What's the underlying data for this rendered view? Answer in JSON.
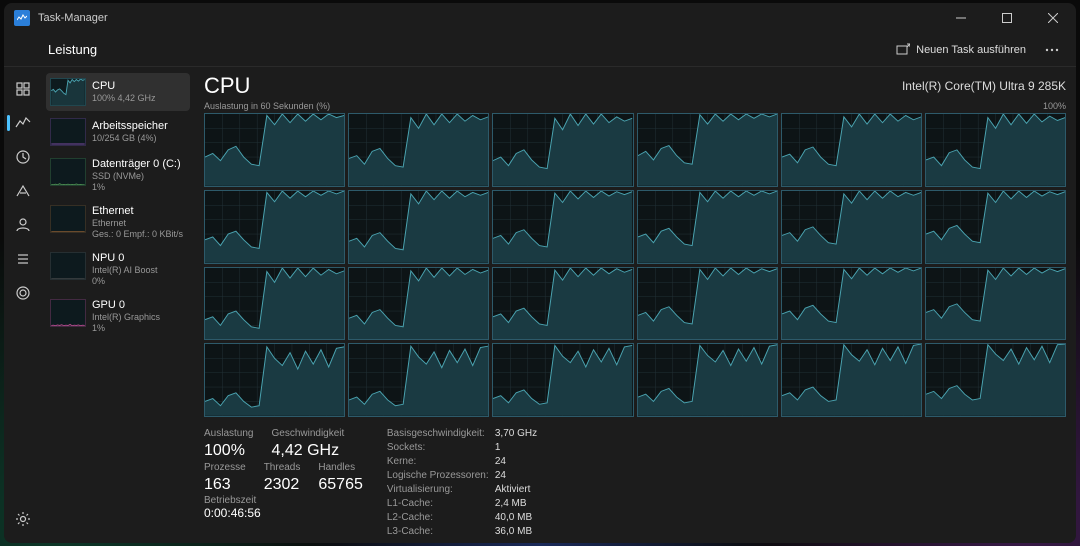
{
  "window": {
    "title": "Task-Manager"
  },
  "toolbar": {
    "page": "Leistung",
    "new_task": "Neuen Task ausführen"
  },
  "nav": {
    "items": [
      {
        "name": "processes-tab"
      },
      {
        "name": "performance-tab",
        "active": true
      },
      {
        "name": "history-tab"
      },
      {
        "name": "startup-tab"
      },
      {
        "name": "users-tab"
      },
      {
        "name": "details-tab"
      },
      {
        "name": "services-tab"
      }
    ]
  },
  "side": [
    {
      "name": "CPU",
      "sub": "100% 4,42 GHz",
      "selected": true,
      "color": "#4aa3b0",
      "spark": [
        55,
        60,
        50,
        58,
        62,
        54,
        45,
        40,
        95,
        85,
        98,
        90,
        98,
        92,
        100,
        95,
        98
      ]
    },
    {
      "name": "Arbeitsspeicher",
      "sub": "10/254 GB (4%)",
      "color": "#7a4aa0",
      "spark": [
        4,
        4,
        4,
        4,
        4,
        4,
        4,
        4,
        4,
        4,
        4,
        4,
        4,
        4,
        4,
        4,
        4
      ]
    },
    {
      "name": "Datenträger 0 (C:)",
      "sub": "SSD (NVMe)",
      "sub2": "1%",
      "color": "#4a8a50",
      "spark": [
        2,
        1,
        3,
        1,
        5,
        1,
        2,
        1,
        3,
        1,
        2,
        1,
        4,
        1,
        2,
        1,
        1
      ]
    },
    {
      "name": "Ethernet",
      "sub": "Ethernet",
      "sub2": "Ges.: 0 Empf.: 0 KBit/s",
      "color": "#8a5a30",
      "spark": [
        1,
        1,
        1,
        1,
        1,
        1,
        1,
        1,
        1,
        1,
        1,
        1,
        1,
        1,
        1,
        1,
        1
      ]
    },
    {
      "name": "NPU 0",
      "sub": "Intel(R) AI Boost",
      "sub2": "0%",
      "color": "#5a5a5a",
      "spark": [
        0,
        0,
        0,
        0,
        0,
        0,
        0,
        0,
        0,
        0,
        0,
        0,
        0,
        0,
        0,
        0,
        0
      ]
    },
    {
      "name": "GPU 0",
      "sub": "Intel(R) Graphics",
      "sub2": "1%",
      "color": "#b04a8a",
      "spark": [
        2,
        3,
        1,
        4,
        2,
        5,
        1,
        3,
        2,
        6,
        1,
        3,
        2,
        4,
        1,
        3,
        2
      ]
    }
  ],
  "cpu": {
    "title": "CPU",
    "name": "Intel(R) Core(TM) Ultra 9 285K",
    "chart_caption": "Auslastung in 60 Sekunden (%)",
    "max_label": "100%",
    "cores": [
      [
        40,
        45,
        35,
        50,
        55,
        40,
        30,
        28,
        98,
        85,
        100,
        88,
        100,
        90,
        100,
        92,
        100,
        95,
        98
      ],
      [
        38,
        42,
        30,
        48,
        52,
        38,
        28,
        26,
        95,
        80,
        100,
        85,
        100,
        88,
        100,
        90,
        98,
        92,
        96
      ],
      [
        35,
        40,
        28,
        45,
        50,
        36,
        26,
        24,
        94,
        78,
        100,
        84,
        100,
        86,
        100,
        88,
        96,
        90,
        94
      ],
      [
        42,
        48,
        36,
        52,
        56,
        42,
        32,
        30,
        99,
        86,
        100,
        90,
        100,
        92,
        100,
        94,
        100,
        96,
        100
      ],
      [
        40,
        44,
        32,
        50,
        54,
        40,
        30,
        28,
        96,
        82,
        100,
        86,
        100,
        88,
        100,
        90,
        98,
        92,
        96
      ],
      [
        36,
        40,
        28,
        46,
        50,
        36,
        26,
        24,
        95,
        80,
        100,
        85,
        100,
        87,
        100,
        89,
        97,
        91,
        95
      ],
      [
        32,
        36,
        24,
        40,
        44,
        32,
        22,
        20,
        98,
        85,
        100,
        90,
        100,
        92,
        100,
        94,
        100,
        96,
        100
      ],
      [
        30,
        34,
        22,
        38,
        42,
        30,
        20,
        18,
        96,
        82,
        100,
        88,
        100,
        90,
        100,
        92,
        98,
        94,
        98
      ],
      [
        34,
        38,
        26,
        42,
        46,
        34,
        24,
        22,
        97,
        84,
        100,
        89,
        100,
        91,
        100,
        93,
        99,
        95,
        99
      ],
      [
        36,
        40,
        28,
        44,
        48,
        36,
        26,
        24,
        98,
        85,
        100,
        90,
        100,
        92,
        100,
        94,
        100,
        96,
        100
      ],
      [
        38,
        42,
        30,
        46,
        50,
        38,
        28,
        26,
        96,
        83,
        100,
        88,
        100,
        90,
        100,
        92,
        98,
        94,
        98
      ],
      [
        40,
        44,
        32,
        48,
        52,
        40,
        30,
        28,
        97,
        84,
        100,
        89,
        100,
        91,
        100,
        93,
        99,
        95,
        99
      ],
      [
        28,
        32,
        20,
        36,
        40,
        28,
        18,
        16,
        95,
        80,
        100,
        86,
        100,
        88,
        100,
        90,
        98,
        92,
        96
      ],
      [
        30,
        34,
        22,
        38,
        42,
        30,
        20,
        18,
        96,
        82,
        100,
        87,
        100,
        89,
        100,
        91,
        98,
        93,
        97
      ],
      [
        32,
        36,
        24,
        40,
        44,
        32,
        22,
        20,
        97,
        83,
        100,
        88,
        100,
        90,
        100,
        92,
        99,
        94,
        98
      ],
      [
        34,
        38,
        26,
        42,
        46,
        34,
        24,
        22,
        98,
        84,
        100,
        89,
        100,
        91,
        100,
        93,
        99,
        95,
        99
      ],
      [
        36,
        40,
        28,
        44,
        48,
        36,
        26,
        24,
        98,
        85,
        100,
        90,
        100,
        92,
        100,
        94,
        100,
        96,
        100
      ],
      [
        38,
        42,
        30,
        46,
        50,
        38,
        28,
        26,
        97,
        84,
        100,
        89,
        100,
        91,
        100,
        93,
        99,
        95,
        99
      ],
      [
        20,
        24,
        14,
        28,
        32,
        20,
        12,
        14,
        96,
        80,
        70,
        88,
        65,
        90,
        72,
        92,
        68,
        94,
        96
      ],
      [
        22,
        26,
        16,
        30,
        34,
        22,
        14,
        16,
        97,
        82,
        72,
        89,
        67,
        91,
        74,
        93,
        70,
        95,
        97
      ],
      [
        24,
        28,
        18,
        32,
        36,
        24,
        16,
        18,
        98,
        83,
        74,
        90,
        68,
        92,
        75,
        94,
        71,
        96,
        98
      ],
      [
        26,
        30,
        20,
        34,
        38,
        26,
        18,
        20,
        98,
        84,
        75,
        91,
        70,
        93,
        76,
        95,
        72,
        97,
        99
      ],
      [
        28,
        32,
        22,
        36,
        40,
        28,
        20,
        22,
        99,
        85,
        76,
        92,
        71,
        94,
        77,
        96,
        73,
        98,
        100
      ],
      [
        30,
        34,
        24,
        38,
        42,
        30,
        22,
        24,
        99,
        86,
        77,
        93,
        72,
        95,
        78,
        97,
        74,
        99,
        100
      ]
    ],
    "chart_style": {
      "stroke": "#4aa3b0",
      "fill": "#1a3a42",
      "grid": "#243238",
      "border": "#2d5a6a",
      "bg": "#0d1416"
    }
  },
  "stats": {
    "group1": [
      {
        "label": "Auslastung",
        "value": "100%"
      },
      {
        "label": "Geschwindigkeit",
        "value": "4,42 GHz"
      }
    ],
    "group2": [
      {
        "label": "Prozesse",
        "value": "163"
      },
      {
        "label": "Threads",
        "value": "2302"
      },
      {
        "label": "Handles",
        "value": "65765"
      }
    ],
    "uptime_label": "Betriebszeit",
    "uptime": "0:00:46:56",
    "details": [
      {
        "k": "Basisgeschwindigkeit:",
        "v": "3,70 GHz"
      },
      {
        "k": "Sockets:",
        "v": "1"
      },
      {
        "k": "Kerne:",
        "v": "24"
      },
      {
        "k": "Logische Prozessoren:",
        "v": "24"
      },
      {
        "k": "Virtualisierung:",
        "v": "Aktiviert"
      },
      {
        "k": "L1-Cache:",
        "v": "2,4 MB"
      },
      {
        "k": "L2-Cache:",
        "v": "40,0 MB"
      },
      {
        "k": "L3-Cache:",
        "v": "36,0 MB"
      }
    ]
  }
}
